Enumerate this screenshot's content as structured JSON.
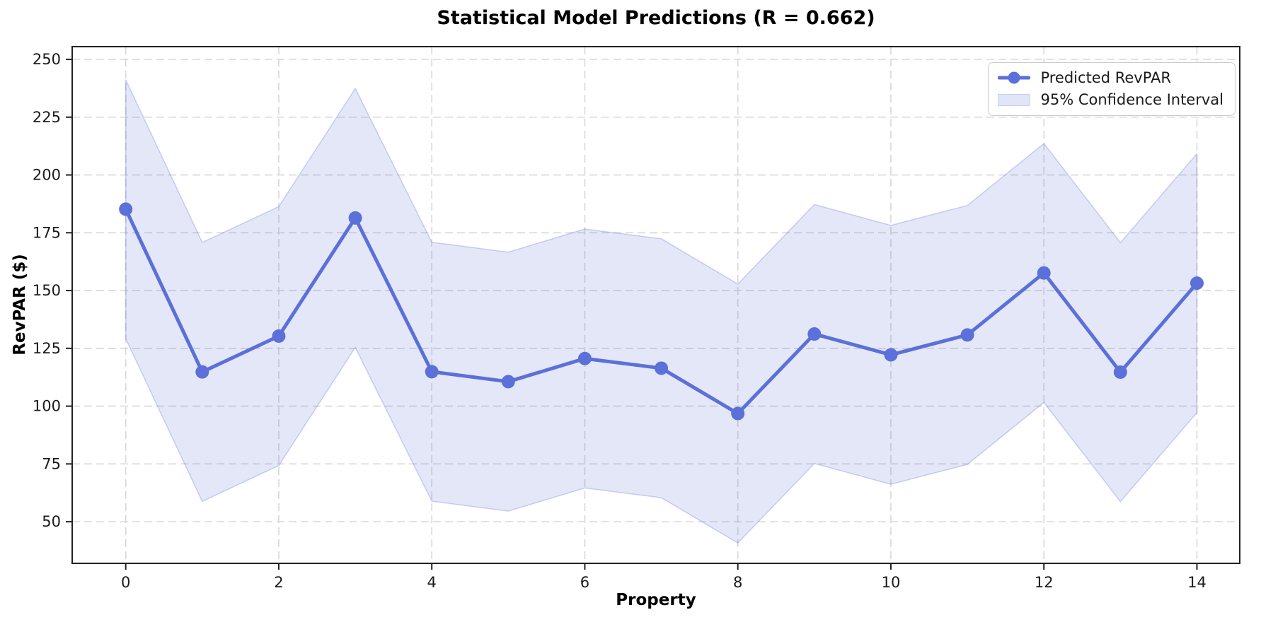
{
  "chart_data": {
    "type": "line",
    "title": "Statistical Model Predictions (R = 0.662)",
    "xlabel": "Property",
    "ylabel": "RevPAR ($)",
    "x": [
      0,
      1,
      2,
      3,
      4,
      5,
      6,
      7,
      8,
      9,
      10,
      11,
      12,
      13,
      14
    ],
    "series": [
      {
        "name": "Predicted RevPAR",
        "values": [
          185.2,
          114.8,
          130.3,
          181.4,
          114.9,
          110.6,
          120.6,
          116.4,
          96.8,
          131.2,
          122.2,
          130.8,
          157.6,
          114.7,
          153.2
        ],
        "color": "#5b70d8",
        "marker": "circle"
      }
    ],
    "band": {
      "name": "95% Confidence Interval",
      "upper": [
        241.2,
        170.8,
        186.3,
        237.4,
        170.9,
        166.6,
        176.6,
        172.4,
        152.8,
        187.2,
        178.2,
        186.8,
        213.6,
        170.7,
        209.2
      ],
      "lower": [
        129.2,
        58.8,
        74.3,
        125.4,
        58.9,
        54.6,
        64.6,
        60.4,
        40.8,
        75.2,
        66.2,
        74.8,
        101.6,
        58.7,
        97.2
      ],
      "fill": "rgba(92,113,216,0.17)",
      "edge": "rgba(92,113,216,0.30)"
    },
    "x_ticks": [
      0,
      2,
      4,
      6,
      8,
      10,
      12,
      14
    ],
    "y_ticks": [
      50,
      75,
      100,
      125,
      150,
      175,
      200,
      225,
      250
    ],
    "xlim": [
      -0.7,
      14.56
    ],
    "ylim": [
      32,
      255.5
    ],
    "grid": true,
    "grid_color": "#d8d8d8",
    "spine_color": "#222222",
    "tick_label_color": "#1a1a1a",
    "legend_position": "upper right",
    "legend_entries": [
      "Predicted RevPAR",
      "95% Confidence Interval"
    ]
  }
}
